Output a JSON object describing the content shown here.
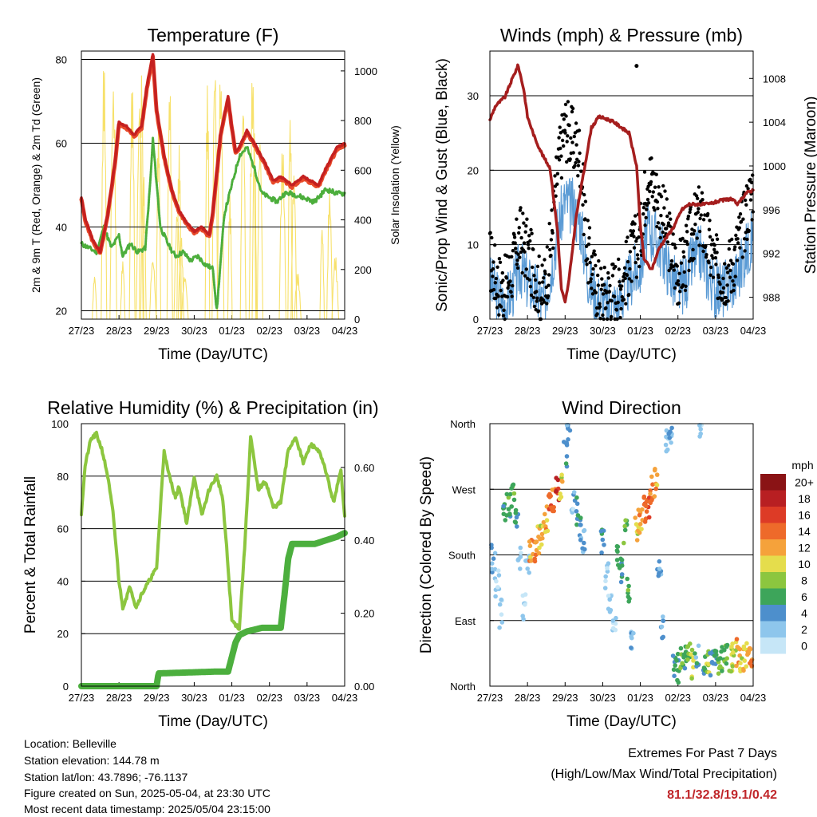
{
  "x_ticks": [
    "27/23",
    "28/23",
    "29/23",
    "30/23",
    "01/23",
    "02/23",
    "03/23",
    "04/23"
  ],
  "xlabel": "Time (Day/UTC)",
  "colors": {
    "temp2m": "#e84a2a",
    "temp9m": "#c42020",
    "td": "#4cae3c",
    "solar": "#f7e16b",
    "gust": "#000000",
    "wind": "#5b9bd5",
    "pressure": "#a51e1e",
    "rh": "#8cc63f",
    "precip": "#4caf3e"
  },
  "chart_data": [
    {
      "id": "temperature",
      "type": "line",
      "title": "Temperature (F)",
      "xlabel": "Time (Day/UTC)",
      "ylabel": "2m & 9m T (Red, Orange) & 2m Td (Green)",
      "y2label": "Solar Insolation (Yellow)",
      "ylim": [
        18,
        82
      ],
      "yticks": [
        20,
        40,
        60,
        80
      ],
      "y2lim": [
        0,
        1080
      ],
      "y2ticks": [
        0,
        200,
        400,
        600,
        800,
        1000
      ],
      "grid": true,
      "series": [
        {
          "key": "temp",
          "x": [
            0,
            0.1,
            0.3,
            0.5,
            0.7,
            0.9,
            1.0,
            1.2,
            1.4,
            1.6,
            1.75,
            1.9,
            2.0,
            2.2,
            2.4,
            2.6,
            2.8,
            3.0,
            3.2,
            3.4,
            3.5,
            3.7,
            3.9,
            4.0,
            4.1,
            4.2,
            4.4,
            4.6,
            4.9,
            5.1,
            5.3,
            5.6,
            5.9,
            6.1,
            6.3,
            6.5,
            6.8,
            7.0
          ],
          "values": [
            47,
            42,
            37,
            34,
            43,
            56,
            65,
            64,
            62,
            64,
            74,
            81,
            68,
            57,
            49,
            44,
            41,
            39,
            40,
            38,
            44,
            62,
            71,
            64,
            58,
            59,
            63,
            60,
            55,
            51,
            52,
            50,
            52,
            51,
            50,
            54,
            59,
            60
          ]
        },
        {
          "key": "td",
          "x": [
            0,
            0.2,
            0.4,
            0.6,
            0.8,
            1.0,
            1.1,
            1.3,
            1.5,
            1.7,
            1.85,
            1.9,
            2.1,
            2.3,
            2.5,
            2.7,
            2.9,
            3.1,
            3.3,
            3.5,
            3.6,
            3.8,
            4.0,
            4.2,
            4.4,
            4.6,
            4.8,
            5.0,
            5.2,
            5.4,
            5.6,
            5.9,
            6.2,
            6.5,
            6.8,
            7.0
          ],
          "values": [
            36,
            35,
            34,
            40,
            35,
            38,
            33,
            36,
            34,
            35,
            53,
            61,
            40,
            36,
            33,
            34,
            32,
            33,
            31,
            30,
            20,
            43,
            50,
            57,
            59,
            54,
            48,
            47,
            46,
            48,
            48,
            47,
            46,
            49,
            48,
            48
          ]
        },
        {
          "key": "solar",
          "x": [
            0.35,
            0.6,
            0.85,
            1.1,
            1.35,
            1.55,
            1.6,
            1.65,
            1.9,
            2.05,
            2.35,
            2.55,
            2.6,
            2.65,
            2.75,
            3.35,
            3.55,
            3.7,
            3.95,
            4.3,
            4.55,
            4.6,
            4.75,
            5.35,
            5.55,
            5.65,
            5.75,
            6.4,
            6.6,
            6.75
          ],
          "peaks": [
            180,
            1050,
            950,
            240,
            960,
            900,
            1000,
            600,
            250,
            800,
            950,
            450,
            700,
            350,
            180,
            940,
            1050,
            1000,
            500,
            900,
            1000,
            760,
            750,
            700,
            830,
            600,
            190,
            380,
            520,
            260
          ]
        }
      ]
    },
    {
      "id": "winds",
      "type": "scatter",
      "title": "Winds (mph) & Pressure (mb)",
      "xlabel": "Time (Day/UTC)",
      "ylabel": "Sonic/Prop Wind & Gust (Blue, Black)",
      "y2label": "Station Pressure (Maroon)",
      "ylim": [
        0,
        36
      ],
      "yticks": [
        0,
        10,
        20,
        30
      ],
      "y2lim": [
        986.0,
        1010.5
      ],
      "y2ticks": [
        988,
        992,
        996,
        1000,
        1004,
        1008
      ],
      "grid": true,
      "series": [
        {
          "key": "pressure",
          "x": [
            0,
            0.15,
            0.4,
            0.6,
            0.75,
            0.9,
            1.0,
            1.2,
            1.4,
            1.6,
            1.8,
            1.9,
            2.0,
            2.1,
            2.3,
            2.5,
            2.7,
            2.9,
            3.1,
            3.3,
            3.5,
            3.7,
            3.9,
            4.0,
            4.1,
            4.3,
            4.5,
            4.7,
            4.9,
            5.1,
            5.3,
            5.5,
            5.8,
            6.1,
            6.4,
            6.6,
            6.8,
            7.0
          ],
          "values": [
            1004.2,
            1005.5,
            1006.3,
            1008.0,
            1009.2,
            1007.0,
            1004.5,
            1002.5,
            1001.0,
            999.8,
            994.0,
            988.8,
            987.5,
            989.5,
            995.5,
            999.5,
            1003.5,
            1004.5,
            1004.3,
            1004.0,
            1003.5,
            1003.0,
            1000.0,
            994.5,
            991.5,
            990.5,
            992.5,
            993.5,
            994.5,
            996.0,
            996.5,
            996.5,
            996.5,
            996.8,
            997.0,
            996.5,
            997.5,
            997.8
          ]
        },
        {
          "key": "gust",
          "x": [
            0,
            0.2,
            0.4,
            0.6,
            0.8,
            1.0,
            1.2,
            1.4,
            1.6,
            1.8,
            2.0,
            2.2,
            2.4,
            2.6,
            2.8,
            3.0,
            3.2,
            3.4,
            3.6,
            3.8,
            4.0,
            4.2,
            4.4,
            4.6,
            4.8,
            5.0,
            5.2,
            5.4,
            5.6,
            5.8,
            6.0,
            6.2,
            6.4,
            6.6,
            6.8,
            7.0
          ],
          "values": [
            8,
            5,
            4,
            7,
            11,
            9,
            6,
            3,
            9,
            20,
            26,
            24,
            22,
            9,
            5,
            3,
            4,
            4,
            6,
            9,
            11,
            20,
            17,
            14,
            10,
            6,
            8,
            12,
            14,
            10,
            7,
            6,
            7,
            10,
            14,
            18
          ]
        },
        {
          "key": "wind",
          "x": [
            0,
            0.2,
            0.4,
            0.6,
            0.8,
            1.0,
            1.2,
            1.4,
            1.6,
            1.8,
            2.0,
            2.2,
            2.4,
            2.6,
            2.8,
            3.0,
            3.2,
            3.4,
            3.6,
            3.8,
            4.0,
            4.2,
            4.4,
            4.6,
            4.8,
            5.0,
            5.2,
            5.4,
            5.6,
            5.8,
            6.0,
            6.2,
            6.4,
            6.6,
            6.8,
            7.0
          ],
          "values": [
            5,
            3,
            2,
            4,
            7,
            5,
            4,
            2,
            6,
            12,
            16,
            15,
            13,
            6,
            3,
            2,
            2,
            2,
            4,
            6,
            7,
            12,
            11,
            9,
            6,
            4,
            5,
            8,
            9,
            6,
            4,
            4,
            5,
            6,
            9,
            11
          ]
        }
      ]
    },
    {
      "id": "humidity",
      "type": "line",
      "title": "Relative Humidity (%) & Precipitation (in)",
      "xlabel": "Time (Day/UTC)",
      "ylabel": "Percent & Total Rainfall",
      "ylim": [
        0,
        100
      ],
      "yticks": [
        0,
        20,
        40,
        60,
        80,
        100
      ],
      "y2lim": [
        0,
        0.72
      ],
      "y2ticks": [
        "0.00",
        "0.20",
        "0.40",
        "0.60"
      ],
      "grid": true,
      "series": [
        {
          "key": "rh",
          "x": [
            0,
            0.1,
            0.25,
            0.4,
            0.55,
            0.7,
            0.85,
            1.0,
            1.1,
            1.3,
            1.45,
            1.6,
            1.8,
            2.0,
            2.2,
            2.3,
            2.5,
            2.6,
            2.8,
            3.0,
            3.2,
            3.4,
            3.6,
            3.75,
            3.85,
            4.0,
            4.2,
            4.35,
            4.5,
            4.7,
            4.9,
            5.1,
            5.3,
            5.5,
            5.7,
            5.9,
            6.1,
            6.3,
            6.5,
            6.7,
            6.9,
            7.0
          ],
          "values": [
            66,
            84,
            94,
            96,
            90,
            80,
            65,
            40,
            30,
            38,
            30,
            35,
            40,
            45,
            90,
            82,
            72,
            76,
            62,
            80,
            65,
            75,
            80,
            72,
            55,
            25,
            22,
            55,
            95,
            75,
            78,
            68,
            70,
            90,
            95,
            85,
            92,
            90,
            82,
            70,
            82,
            65
          ]
        },
        {
          "key": "precip",
          "x": [
            0,
            1.0,
            2.0,
            2.05,
            3.6,
            3.9,
            4.0,
            4.1,
            4.2,
            4.4,
            4.6,
            4.8,
            5.0,
            5.3,
            5.4,
            5.5,
            5.6,
            5.8,
            6.0,
            6.2,
            6.5,
            6.8,
            7.0
          ],
          "values": [
            0,
            0,
            0,
            0.035,
            0.04,
            0.04,
            0.08,
            0.12,
            0.14,
            0.15,
            0.155,
            0.16,
            0.16,
            0.16,
            0.25,
            0.35,
            0.39,
            0.39,
            0.39,
            0.39,
            0.4,
            0.41,
            0.42
          ]
        }
      ]
    },
    {
      "id": "direction",
      "type": "scatter",
      "title": "Wind Direction",
      "xlabel": "Time (Day/UTC)",
      "ylabel": "Direction (Colored By Speed)",
      "ylim": [
        0,
        360
      ],
      "yticks": [
        "North",
        "East",
        "South",
        "West",
        "North"
      ],
      "grid": true,
      "legend": {
        "title": "mph",
        "placement": "right",
        "labels": [
          "0",
          "2",
          "4",
          "6",
          "8",
          "10",
          "12",
          "14",
          "16",
          "18",
          "20+"
        ],
        "colors": [
          "#c6e6f7",
          "#8ec6ec",
          "#4d8fcc",
          "#3da55a",
          "#8cc63f",
          "#e5dd4c",
          "#f5a23b",
          "#ee6a2a",
          "#dd3b26",
          "#b81f22",
          "#8a1315"
        ]
      },
      "series": [
        {
          "key": "dir",
          "x": [
            0,
            0.1,
            0.2,
            0.3,
            0.4,
            0.5,
            0.6,
            0.7,
            0.8,
            0.9,
            1.0,
            1.1,
            1.2,
            1.3,
            1.4,
            1.5,
            1.6,
            1.7,
            1.8,
            1.9,
            2.0,
            2.1,
            2.2,
            2.3,
            2.4,
            2.5,
            3.0,
            3.1,
            3.2,
            3.3,
            3.4,
            3.5,
            3.6,
            3.7,
            3.8,
            3.9,
            4.0,
            4.1,
            4.2,
            4.3,
            4.4,
            4.5,
            4.6,
            4.7,
            4.8,
            4.9,
            5.0,
            5.1,
            5.2,
            5.3,
            5.4,
            5.5,
            5.6,
            5.7,
            5.8,
            5.9,
            6.0,
            6.1,
            6.2,
            6.3,
            6.4,
            6.5,
            6.6,
            6.7,
            6.8,
            6.9,
            7.0
          ],
          "values": [
            185,
            165,
            140,
            100,
            230,
            245,
            260,
            230,
            170,
            110,
            175,
            185,
            190,
            200,
            210,
            230,
            245,
            260,
            270,
            275,
            320,
            350,
            250,
            240,
            220,
            200,
            200,
            150,
            120,
            90,
            180,
            160,
            210,
            130,
            60,
            220,
            230,
            240,
            250,
            270,
            280,
            160,
            80,
            340,
            350,
            30,
            25,
            35,
            40,
            45,
            30,
            40,
            360,
            35,
            35,
            30,
            40,
            30,
            35,
            38,
            40,
            42,
            45,
            40,
            43,
            45,
            42
          ],
          "speeds": [
            3,
            3,
            2,
            1,
            5,
            6,
            7,
            5,
            1,
            1,
            3,
            12,
            13,
            11,
            10,
            12,
            14,
            13,
            17,
            10,
            4,
            3,
            2,
            5,
            4,
            3,
            4,
            1,
            1,
            1,
            6,
            5,
            7,
            6,
            3,
            10,
            12,
            14,
            15,
            13,
            12,
            4,
            3,
            2,
            3,
            5,
            6,
            8,
            5,
            8,
            10,
            4,
            2,
            6,
            8,
            4,
            5,
            7,
            6,
            6,
            9,
            8,
            12,
            10,
            11,
            13,
            13
          ]
        }
      ]
    }
  ],
  "info": {
    "location": "Location: Belleville",
    "elevation": "Station elevation: 144.78 m",
    "latlon": "Station lat/lon: 43.7896; -76.1137",
    "created": "Figure created on Sun, 2025-05-04, at 23:30 UTC",
    "recent": "Most recent data timestamp: 2025/05/04 23:15:00"
  },
  "extremes": {
    "title": "Extremes For Past 7 Days",
    "subtitle": "(High/Low/Max Wind/Total Precipitation)",
    "values": "81.1/32.8/19.1/0.42"
  }
}
